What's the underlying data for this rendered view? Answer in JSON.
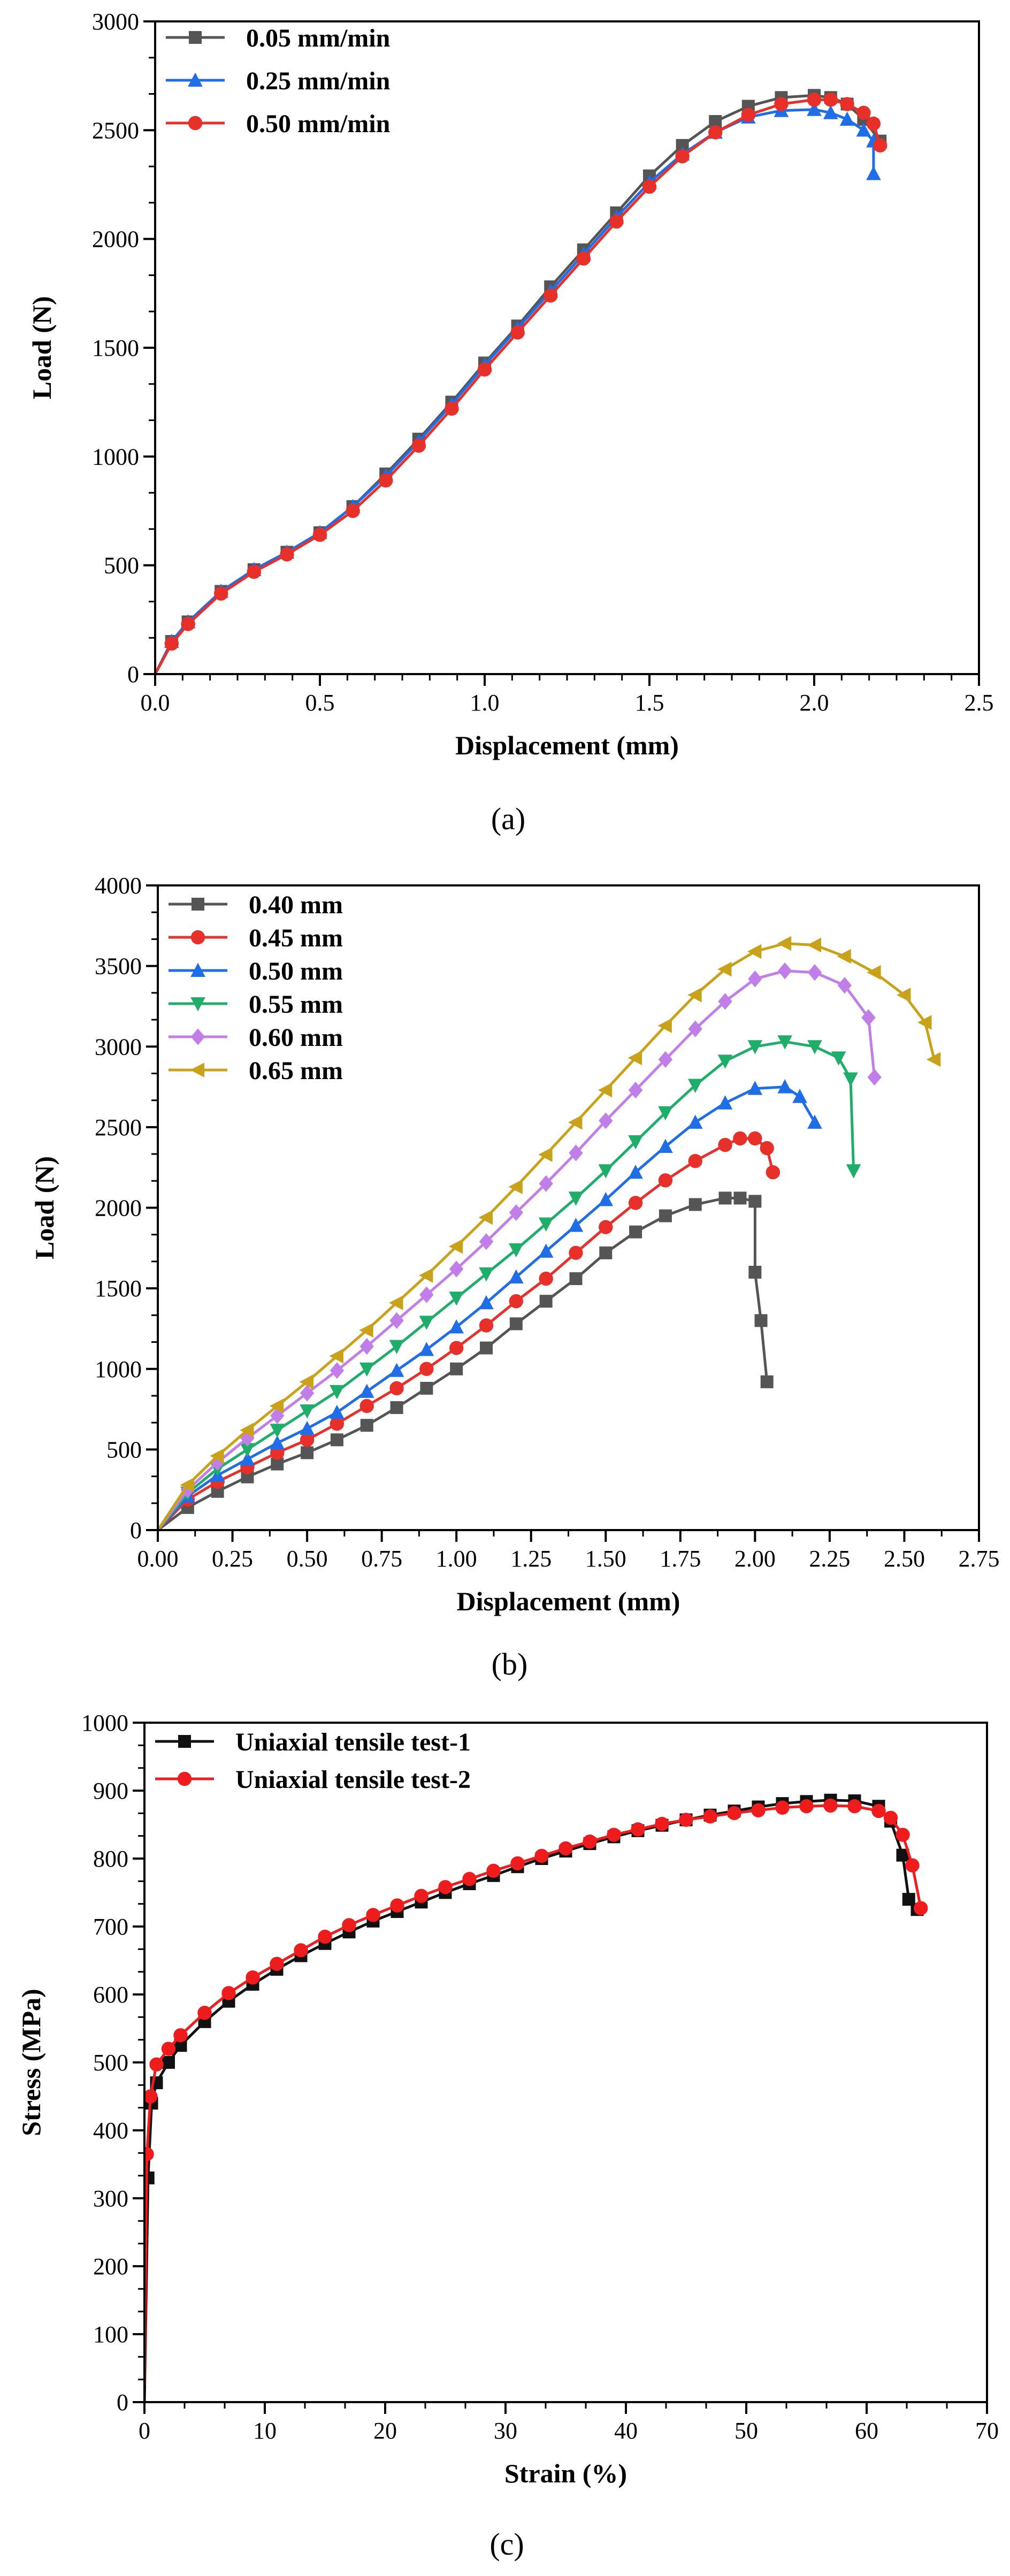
{
  "figure": {
    "panels": [
      "(a)",
      "(b)",
      "(c)"
    ]
  },
  "chart_data": [
    {
      "type": "line",
      "panel_label": "(a)",
      "title": "",
      "xlabel": "Displacement (mm)",
      "ylabel": "Load (N)",
      "xlim": [
        0,
        2.5
      ],
      "ylim": [
        0,
        3000
      ],
      "xticks": [
        "0.0",
        "0.5",
        "1.0",
        "1.5",
        "2.0",
        "2.5"
      ],
      "yticks": [
        "0",
        "500",
        "1000",
        "1500",
        "2000",
        "2500",
        "3000"
      ],
      "grid": false,
      "legend_position": "top-left",
      "series": [
        {
          "name": "0.05 mm/min",
          "color": "#555555",
          "marker": "square",
          "x": [
            0,
            0.05,
            0.1,
            0.2,
            0.3,
            0.4,
            0.5,
            0.6,
            0.7,
            0.8,
            0.9,
            1.0,
            1.1,
            1.2,
            1.3,
            1.4,
            1.5,
            1.6,
            1.7,
            1.8,
            1.9,
            2.0,
            2.05,
            2.1,
            2.15,
            2.2
          ],
          "y": [
            0,
            150,
            240,
            380,
            480,
            560,
            650,
            770,
            920,
            1080,
            1250,
            1430,
            1600,
            1780,
            1950,
            2120,
            2290,
            2430,
            2540,
            2610,
            2650,
            2660,
            2650,
            2620,
            2550,
            2450
          ]
        },
        {
          "name": "0.25 mm/min",
          "color": "#1f6ee8",
          "marker": "triangle-up",
          "x": [
            0,
            0.05,
            0.1,
            0.2,
            0.3,
            0.4,
            0.5,
            0.6,
            0.7,
            0.8,
            0.9,
            1.0,
            1.1,
            1.2,
            1.3,
            1.4,
            1.5,
            1.6,
            1.7,
            1.8,
            1.9,
            2.0,
            2.05,
            2.1,
            2.15,
            2.18,
            2.18
          ],
          "y": [
            0,
            150,
            240,
            380,
            480,
            560,
            650,
            770,
            910,
            1070,
            1240,
            1420,
            1590,
            1760,
            1930,
            2100,
            2260,
            2390,
            2490,
            2560,
            2590,
            2595,
            2580,
            2550,
            2500,
            2450,
            2300
          ]
        },
        {
          "name": "0.50 mm/min",
          "color": "#e8302a",
          "marker": "circle",
          "x": [
            0,
            0.05,
            0.1,
            0.2,
            0.3,
            0.4,
            0.5,
            0.6,
            0.7,
            0.8,
            0.9,
            1.0,
            1.1,
            1.2,
            1.3,
            1.4,
            1.5,
            1.6,
            1.7,
            1.8,
            1.9,
            2.0,
            2.05,
            2.1,
            2.15,
            2.18,
            2.2
          ],
          "y": [
            0,
            140,
            230,
            370,
            470,
            550,
            640,
            750,
            890,
            1050,
            1220,
            1400,
            1570,
            1740,
            1910,
            2080,
            2240,
            2380,
            2490,
            2570,
            2620,
            2640,
            2640,
            2620,
            2580,
            2530,
            2430
          ]
        }
      ]
    },
    {
      "type": "line",
      "panel_label": "(b)",
      "title": "",
      "xlabel": "Displacement (mm)",
      "ylabel": "Load (N)",
      "xlim": [
        0,
        2.75
      ],
      "ylim": [
        0,
        4000
      ],
      "xticks": [
        "0.00",
        "0.25",
        "0.50",
        "0.75",
        "1.00",
        "1.25",
        "1.50",
        "1.75",
        "2.00",
        "2.25",
        "2.50",
        "2.75"
      ],
      "yticks": [
        "0",
        "500",
        "1000",
        "1500",
        "2000",
        "2500",
        "3000",
        "3500",
        "4000"
      ],
      "grid": false,
      "legend_position": "top-left",
      "series": [
        {
          "name": "0.40 mm",
          "color": "#555555",
          "marker": "square",
          "x": [
            0,
            0.1,
            0.2,
            0.3,
            0.4,
            0.5,
            0.6,
            0.7,
            0.8,
            0.9,
            1.0,
            1.1,
            1.2,
            1.3,
            1.4,
            1.5,
            1.6,
            1.7,
            1.8,
            1.9,
            1.95,
            2.0,
            2.0,
            2.02,
            2.04
          ],
          "y": [
            0,
            140,
            240,
            330,
            410,
            480,
            560,
            650,
            760,
            880,
            1000,
            1130,
            1280,
            1420,
            1560,
            1720,
            1850,
            1950,
            2020,
            2060,
            2060,
            2040,
            1600,
            1300,
            920
          ]
        },
        {
          "name": "0.45 mm",
          "color": "#e8302a",
          "marker": "circle",
          "x": [
            0,
            0.1,
            0.2,
            0.3,
            0.4,
            0.5,
            0.6,
            0.7,
            0.8,
            0.9,
            1.0,
            1.1,
            1.2,
            1.3,
            1.4,
            1.5,
            1.6,
            1.7,
            1.8,
            1.9,
            1.95,
            2.0,
            2.04,
            2.06
          ],
          "y": [
            0,
            190,
            300,
            390,
            480,
            560,
            660,
            770,
            880,
            1000,
            1130,
            1270,
            1420,
            1560,
            1720,
            1880,
            2030,
            2170,
            2290,
            2390,
            2430,
            2430,
            2370,
            2220
          ]
        },
        {
          "name": "0.50 mm",
          "color": "#1f6ee8",
          "marker": "triangle-up",
          "x": [
            0,
            0.1,
            0.2,
            0.3,
            0.4,
            0.5,
            0.6,
            0.7,
            0.8,
            0.9,
            1.0,
            1.1,
            1.2,
            1.3,
            1.4,
            1.5,
            1.6,
            1.7,
            1.8,
            1.9,
            2.0,
            2.1,
            2.15,
            2.2
          ],
          "y": [
            0,
            210,
            340,
            440,
            540,
            630,
            730,
            860,
            990,
            1120,
            1260,
            1410,
            1570,
            1730,
            1890,
            2050,
            2220,
            2380,
            2530,
            2650,
            2740,
            2750,
            2690,
            2530
          ]
        },
        {
          "name": "0.55 mm",
          "color": "#1fad6a",
          "marker": "triangle-down",
          "x": [
            0,
            0.1,
            0.2,
            0.3,
            0.4,
            0.5,
            0.6,
            0.7,
            0.8,
            0.9,
            1.0,
            1.1,
            1.2,
            1.3,
            1.4,
            1.5,
            1.6,
            1.7,
            1.8,
            1.9,
            2.0,
            2.1,
            2.2,
            2.28,
            2.32,
            2.33
          ],
          "y": [
            0,
            230,
            380,
            500,
            620,
            740,
            860,
            1000,
            1140,
            1290,
            1440,
            1590,
            1740,
            1900,
            2060,
            2230,
            2410,
            2590,
            2760,
            2910,
            3000,
            3030,
            3000,
            2930,
            2800,
            2230
          ]
        },
        {
          "name": "0.60 mm",
          "color": "#c27ee8",
          "marker": "diamond",
          "x": [
            0,
            0.1,
            0.2,
            0.3,
            0.4,
            0.5,
            0.6,
            0.7,
            0.8,
            0.9,
            1.0,
            1.1,
            1.2,
            1.3,
            1.4,
            1.5,
            1.6,
            1.7,
            1.8,
            1.9,
            2.0,
            2.1,
            2.2,
            2.3,
            2.38,
            2.4
          ],
          "y": [
            0,
            250,
            420,
            570,
            710,
            850,
            990,
            1140,
            1300,
            1460,
            1620,
            1790,
            1970,
            2150,
            2340,
            2540,
            2730,
            2920,
            3110,
            3280,
            3420,
            3470,
            3460,
            3380,
            3180,
            2810
          ]
        },
        {
          "name": "0.65 mm",
          "color": "#c9a21a",
          "marker": "triangle-left",
          "x": [
            0,
            0.1,
            0.2,
            0.3,
            0.4,
            0.5,
            0.6,
            0.7,
            0.8,
            0.9,
            1.0,
            1.1,
            1.2,
            1.3,
            1.4,
            1.5,
            1.6,
            1.7,
            1.8,
            1.9,
            2.0,
            2.1,
            2.2,
            2.3,
            2.4,
            2.5,
            2.57,
            2.6
          ],
          "y": [
            0,
            280,
            460,
            620,
            770,
            920,
            1080,
            1240,
            1410,
            1580,
            1760,
            1940,
            2130,
            2330,
            2530,
            2730,
            2930,
            3130,
            3320,
            3480,
            3590,
            3640,
            3630,
            3560,
            3460,
            3320,
            3150,
            2920
          ]
        }
      ]
    },
    {
      "type": "line",
      "panel_label": "(c)",
      "title": "",
      "xlabel": "Strain (%)",
      "ylabel": "Stress (MPa)",
      "xlim": [
        0,
        70
      ],
      "ylim": [
        0,
        1000
      ],
      "xticks": [
        "0",
        "10",
        "20",
        "30",
        "40",
        "50",
        "60",
        "70"
      ],
      "yticks": [
        "0",
        "100",
        "200",
        "300",
        "400",
        "500",
        "600",
        "700",
        "800",
        "900",
        "1000"
      ],
      "grid": false,
      "legend_position": "top-left",
      "series": [
        {
          "name": "Uniaxial tensile test-1",
          "color": "#111111",
          "marker": "square",
          "x": [
            0,
            0.3,
            0.6,
            1,
            2,
            3,
            5,
            7,
            9,
            11,
            13,
            15,
            17,
            19,
            21,
            23,
            25,
            27,
            29,
            31,
            33,
            35,
            37,
            39,
            41,
            43,
            45,
            47,
            49,
            51,
            53,
            55,
            57,
            59,
            61,
            62,
            63,
            63.5,
            64.2
          ],
          "y": [
            0,
            330,
            440,
            470,
            500,
            525,
            560,
            590,
            615,
            637,
            657,
            675,
            692,
            708,
            722,
            736,
            750,
            763,
            775,
            788,
            800,
            811,
            822,
            832,
            841,
            849,
            857,
            864,
            870,
            876,
            881,
            884,
            886,
            885,
            877,
            855,
            805,
            740,
            725
          ]
        },
        {
          "name": "Uniaxial tensile test-2",
          "color": "#ee1c1c",
          "marker": "circle",
          "x": [
            0,
            0.2,
            0.5,
            1,
            2,
            3,
            5,
            7,
            9,
            11,
            13,
            15,
            17,
            19,
            21,
            23,
            25,
            27,
            29,
            31,
            33,
            35,
            37,
            39,
            41,
            43,
            45,
            47,
            49,
            51,
            53,
            55,
            57,
            59,
            61,
            62,
            63,
            63.8,
            64.5
          ],
          "y": [
            25,
            365,
            450,
            497,
            520,
            540,
            573,
            602,
            625,
            645,
            665,
            685,
            702,
            717,
            731,
            745,
            758,
            770,
            782,
            793,
            804,
            815,
            825,
            835,
            843,
            851,
            857,
            862,
            867,
            871,
            875,
            877,
            878,
            877,
            870,
            860,
            835,
            790,
            727
          ]
        }
      ]
    }
  ]
}
